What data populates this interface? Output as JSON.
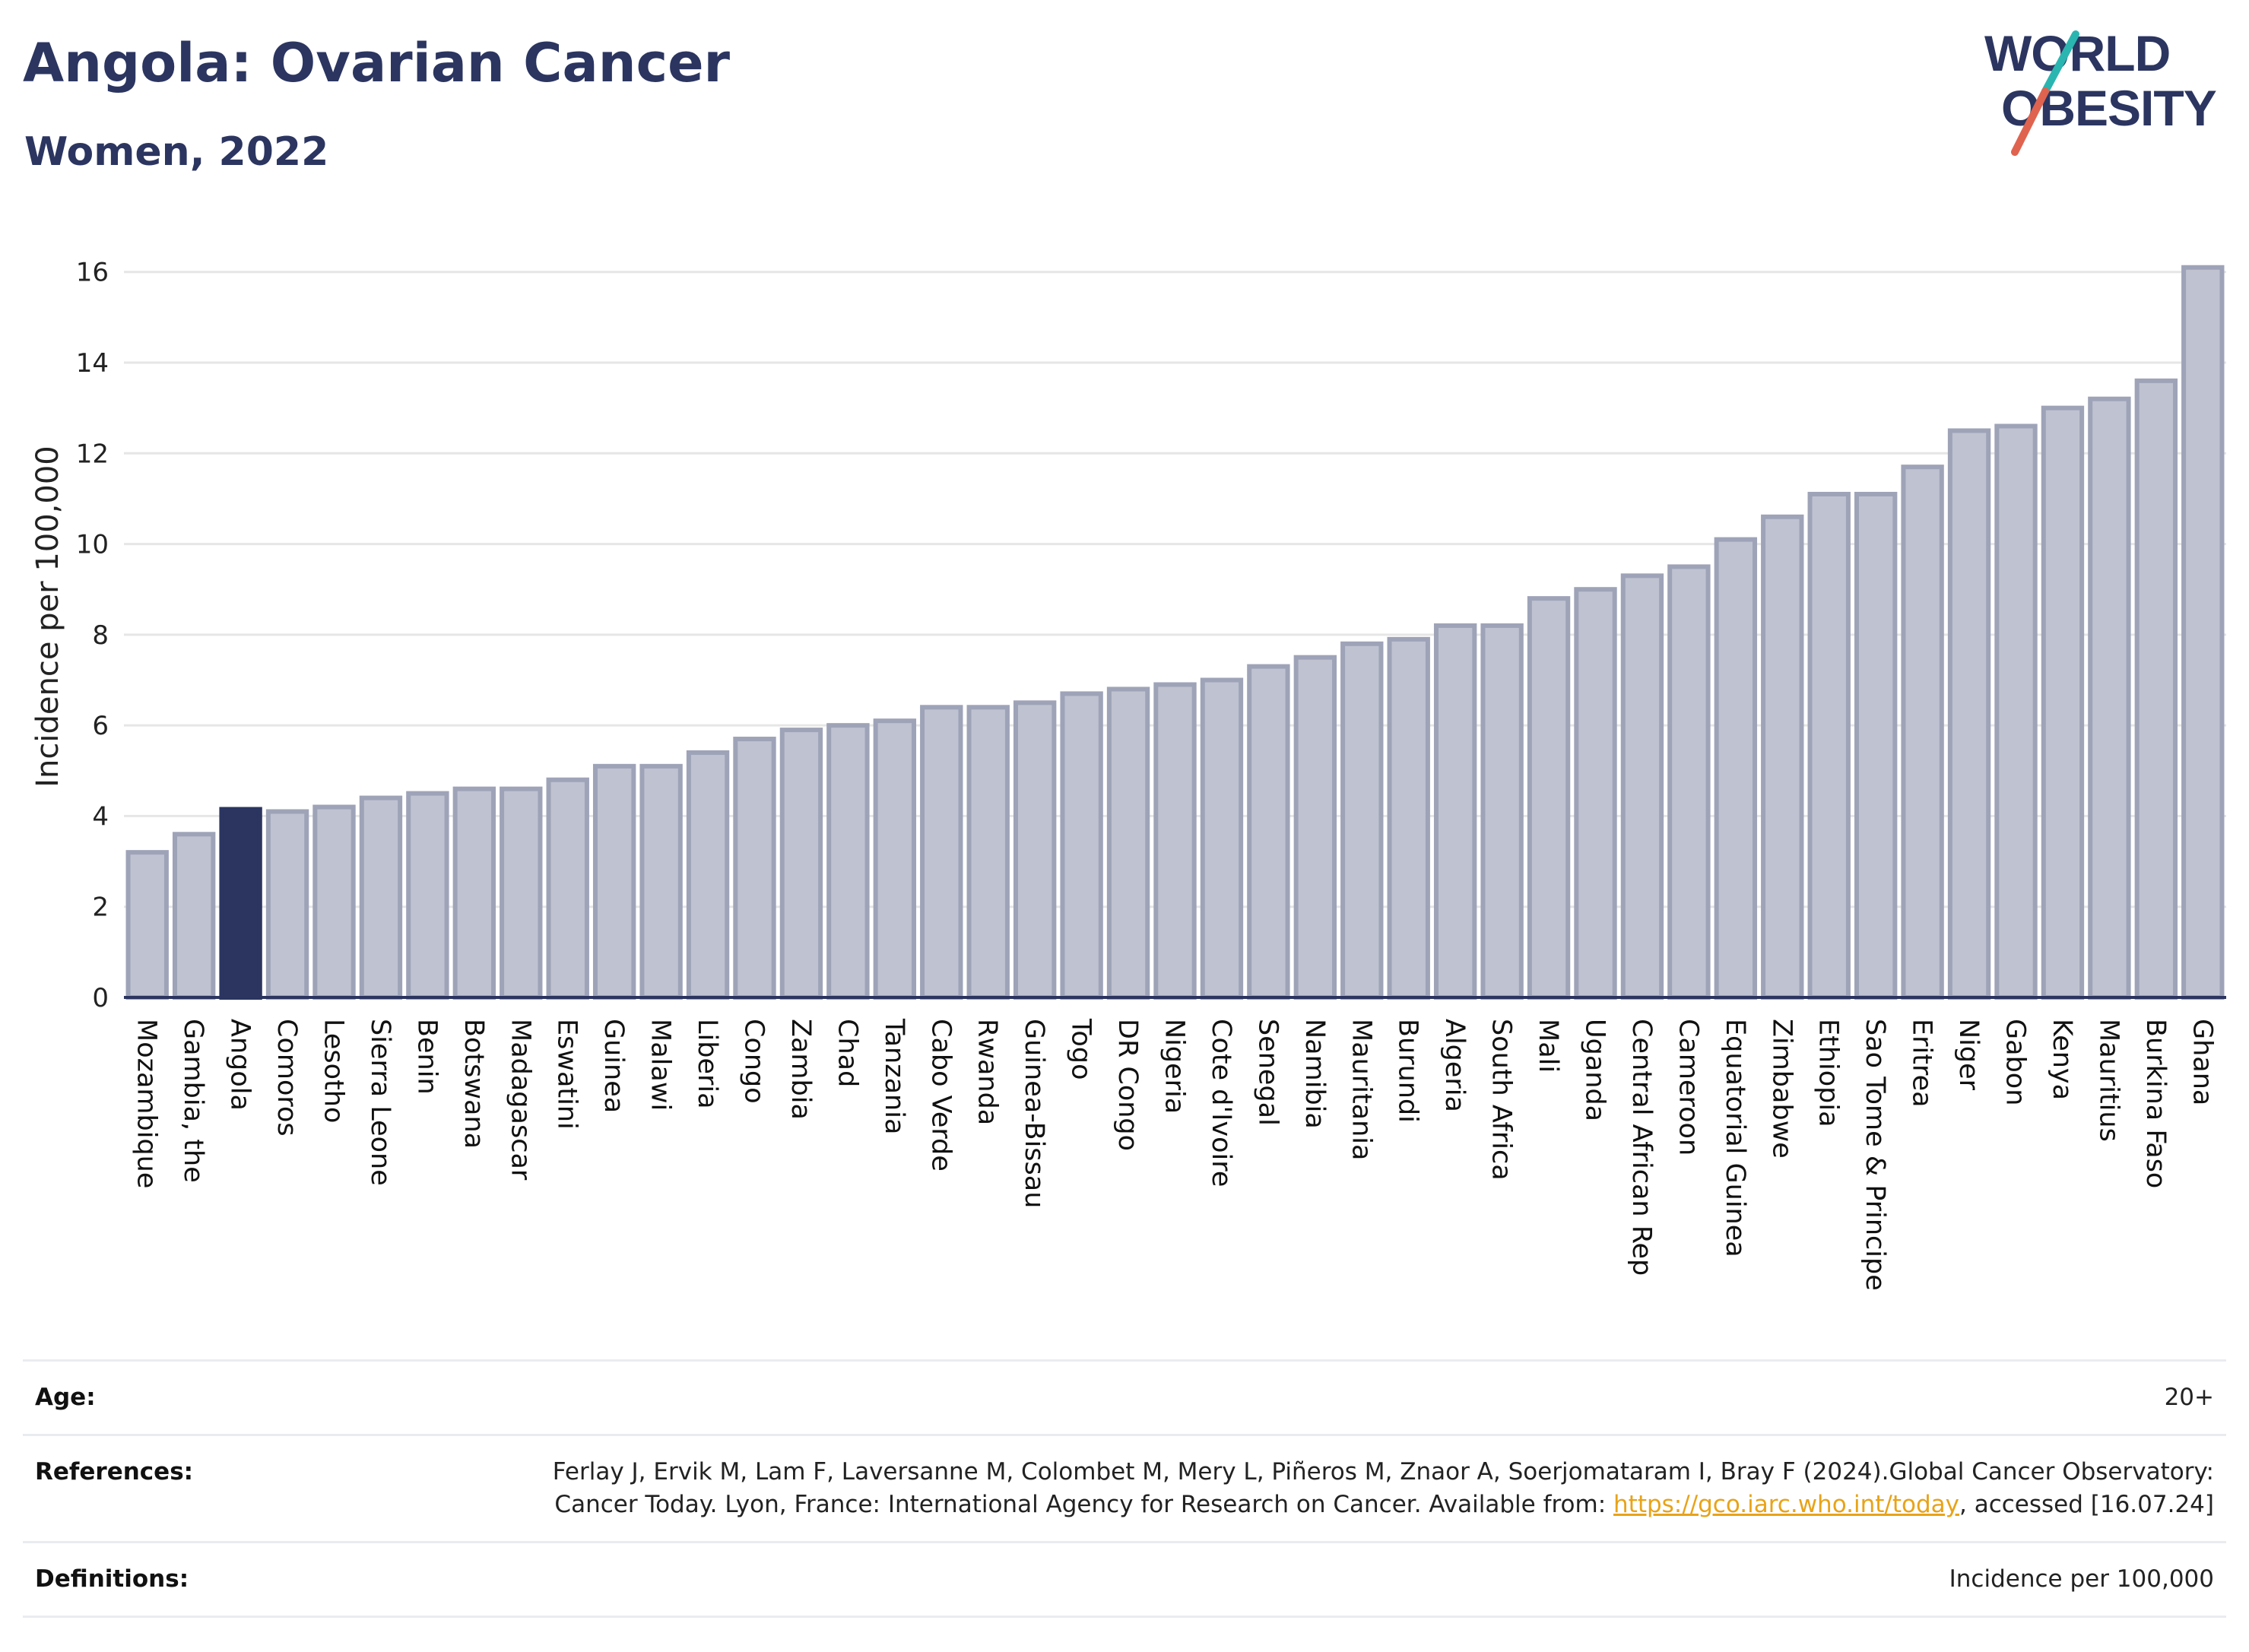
{
  "title": "Angola: Ovarian Cancer",
  "subtitle": "Women, 2022",
  "logo": {
    "line1": "WORLD",
    "line2": "OBESITY",
    "text_color": "#2b3560",
    "stroke_top_color": "#2bb5b0",
    "stroke_bottom_color": "#e0634f"
  },
  "colors": {
    "bar": "#bfc2d0",
    "bar_border": "#9ea3b8",
    "highlight": "#2b3560",
    "grid": "#e6e6e6",
    "axis": "#2b3560"
  },
  "chart_data": {
    "type": "bar",
    "ylabel": "Incidence per 100,000",
    "xlabel": "",
    "ylim": [
      0,
      16.8
    ],
    "yticks": [
      0,
      2,
      4,
      6,
      8,
      10,
      12,
      14,
      16
    ],
    "grid": true,
    "highlight": "Angola",
    "categories": [
      "Mozambique",
      "Gambia, the",
      "Angola",
      "Comoros",
      "Lesotho",
      "Sierra Leone",
      "Benin",
      "Botswana",
      "Madagascar",
      "Eswatini",
      "Guinea",
      "Malawi",
      "Liberia",
      "Congo",
      "Zambia",
      "Chad",
      "Tanzania",
      "Cabo Verde",
      "Rwanda",
      "Guinea-Bissau",
      "Togo",
      "DR Congo",
      "Nigeria",
      "Cote d'Ivoire",
      "Senegal",
      "Namibia",
      "Mauritania",
      "Burundi",
      "Algeria",
      "South Africa",
      "Mali",
      "Uganda",
      "Central African Rep",
      "Cameroon",
      "Equatorial Guinea",
      "Zimbabwe",
      "Ethiopia",
      "Sao Tome & Principe",
      "Eritrea",
      "Niger",
      "Gabon",
      "Kenya",
      "Mauritius",
      "Burkina Faso",
      "Ghana"
    ],
    "values": [
      3.2,
      3.6,
      4.15,
      4.1,
      4.2,
      4.4,
      4.5,
      4.6,
      4.6,
      4.8,
      5.1,
      5.1,
      5.4,
      5.7,
      5.9,
      6.0,
      6.1,
      6.4,
      6.4,
      6.5,
      6.7,
      6.8,
      6.9,
      7.0,
      7.3,
      7.5,
      7.8,
      7.9,
      8.2,
      8.2,
      8.8,
      9.0,
      9.3,
      9.5,
      10.1,
      10.6,
      11.1,
      11.1,
      11.7,
      12.5,
      12.6,
      13.0,
      13.2,
      13.6,
      16.1
    ]
  },
  "info": [
    {
      "key": "Age:",
      "value": "20+"
    },
    {
      "key": "References:",
      "value": "Ferlay J, Ervik M, Lam F, Laversanne M, Colombet M, Mery L, Piñeros M, Znaor A, Soerjomataram I, Bray F (2024).Global Cancer Observatory: Cancer Today. Lyon, France: International Agency for Research on Cancer. Available from: ",
      "link": "https://gco.iarc.who.int/today",
      "suffix": ", accessed [16.07.24]"
    },
    {
      "key": "Definitions:",
      "value": "Incidence per 100,000"
    }
  ]
}
